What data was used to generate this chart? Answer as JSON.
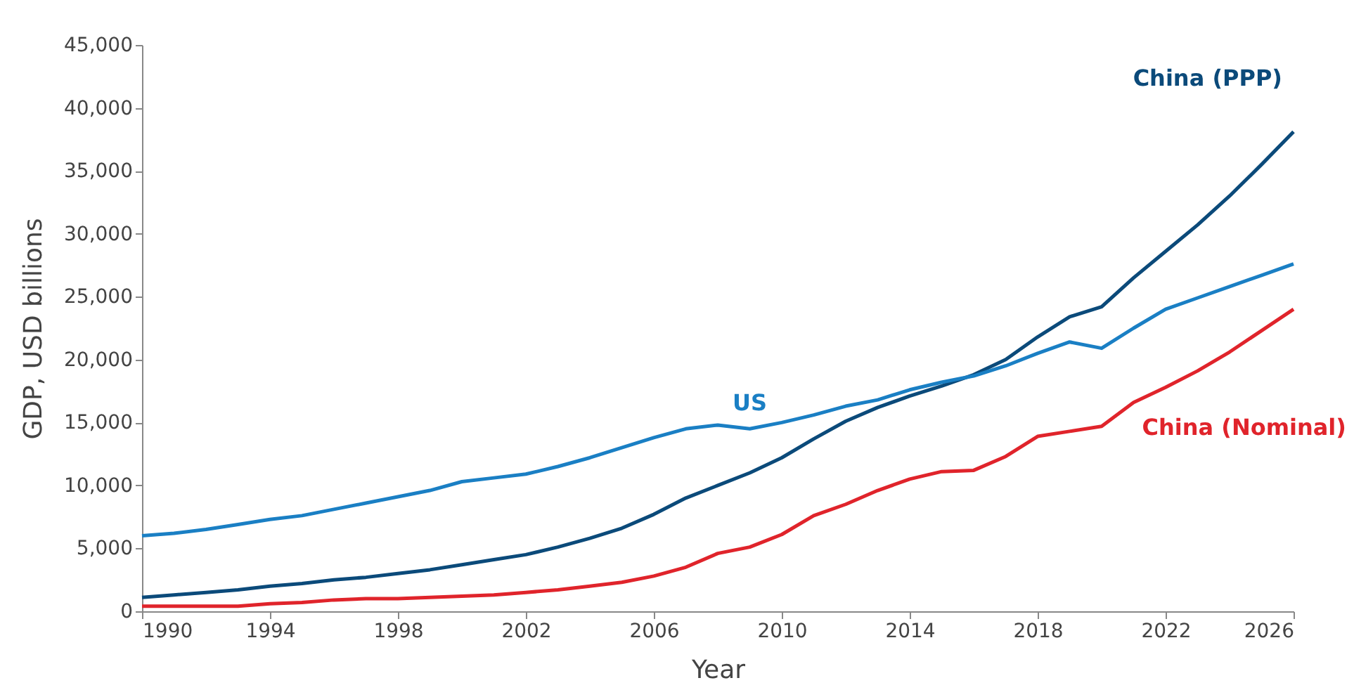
{
  "chart_data": {
    "type": "line",
    "xlabel": "Year",
    "ylabel": "GDP, USD billions",
    "x": [
      1990,
      1991,
      1992,
      1993,
      1994,
      1995,
      1996,
      1997,
      1998,
      1999,
      2000,
      2001,
      2002,
      2003,
      2004,
      2005,
      2006,
      2007,
      2008,
      2009,
      2010,
      2011,
      2012,
      2013,
      2014,
      2015,
      2016,
      2017,
      2018,
      2019,
      2020,
      2021,
      2022,
      2023,
      2024,
      2025,
      2026
    ],
    "series": [
      {
        "name": "China (PPP)",
        "color": "#0b4a7a",
        "values": [
          1100,
          1300,
          1500,
          1700,
          2000,
          2200,
          2500,
          2700,
          3000,
          3300,
          3700,
          4100,
          4500,
          5100,
          5800,
          6600,
          7700,
          9000,
          10000,
          11000,
          12200,
          13700,
          15100,
          16200,
          17100,
          17900,
          18800,
          20000,
          21800,
          23400,
          24200,
          26500,
          28600,
          30700,
          33000,
          35500,
          38100
        ]
      },
      {
        "name": "US",
        "color": "#1a7fc4",
        "values": [
          6000,
          6200,
          6500,
          6900,
          7300,
          7600,
          8100,
          8600,
          9100,
          9600,
          10300,
          10600,
          10900,
          11500,
          12200,
          13000,
          13800,
          14500,
          14800,
          14500,
          15000,
          15600,
          16300,
          16800,
          17600,
          18200,
          18700,
          19500,
          20500,
          21400,
          20900,
          22500,
          24000,
          24900,
          25800,
          26700,
          27600
        ]
      },
      {
        "name": "China (Nominal)",
        "color": "#e0242b",
        "values": [
          400,
          400,
          400,
          400,
          600,
          700,
          900,
          1000,
          1000,
          1100,
          1200,
          1300,
          1500,
          1700,
          2000,
          2300,
          2800,
          3500,
          4600,
          5100,
          6100,
          7600,
          8500,
          9600,
          10500,
          11100,
          11200,
          12300,
          13900,
          14300,
          14700,
          16600,
          17800,
          19100,
          20600,
          22300,
          24000
        ]
      }
    ],
    "xlim": [
      1990,
      2026
    ],
    "xticks": [
      1990,
      1994,
      1998,
      2002,
      2006,
      2010,
      2014,
      2018,
      2022,
      2026
    ],
    "ylim": [
      0,
      45000
    ],
    "yticks": [
      0,
      {
        "value": 5000,
        "label": "5,000"
      },
      {
        "value": 10000,
        "label": "10,000"
      },
      {
        "value": 15000,
        "label": "15,000"
      },
      {
        "value": 20000,
        "label": "20,000"
      },
      {
        "value": 25000,
        "label": "25,000"
      },
      {
        "value": 30000,
        "label": "30,000"
      },
      {
        "value": 35000,
        "label": "35,000"
      },
      {
        "value": 40000,
        "label": "40,000"
      },
      {
        "value": 45000,
        "label": "45,000"
      }
    ],
    "grid": false,
    "legend": false,
    "line_style": "solid",
    "marker": "none"
  }
}
